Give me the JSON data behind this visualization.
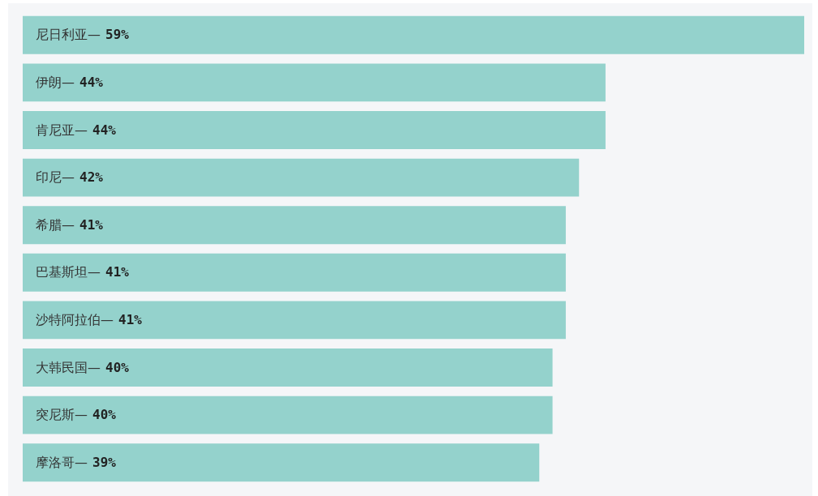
{
  "chart_data": {
    "type": "bar",
    "orientation": "horizontal",
    "categories": [
      "尼日利亚—",
      "伊朗—",
      "肯尼亚—",
      "印尼—",
      "希腊—",
      "巴基斯坦—",
      "沙特阿拉伯—",
      "大韩民国—",
      "突尼斯—",
      "摩洛哥—"
    ],
    "values": [
      59,
      44,
      44,
      42,
      41,
      41,
      41,
      40,
      40,
      39
    ],
    "value_labels": [
      "59%",
      "44%",
      "44%",
      "42%",
      "41%",
      "41%",
      "41%",
      "40%",
      "40%",
      "39%"
    ],
    "color": "#94d2cc",
    "tick_labels": false
  }
}
